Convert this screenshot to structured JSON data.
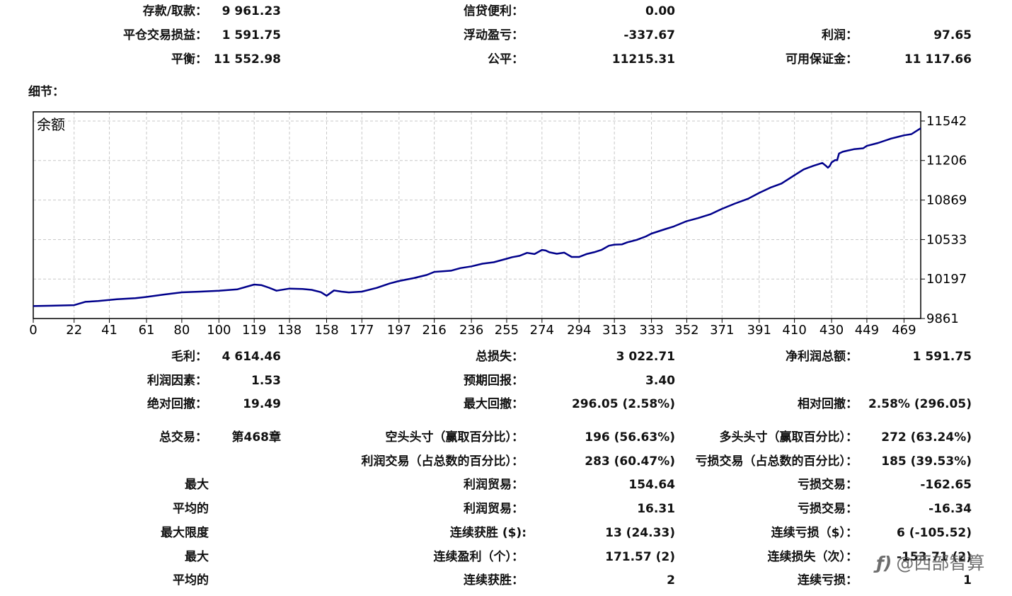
{
  "summary": [
    {
      "label": "存款/取款：",
      "value": "9 961.23"
    },
    {
      "label": "信贷便利：",
      "value": "0.00"
    },
    {
      "label": "平仓交易损益：",
      "value": "1 591.75"
    },
    {
      "label": "浮动盈亏：",
      "value": "-337.67"
    },
    {
      "label": "利润：",
      "value": "97.65"
    },
    {
      "label": "平衡：",
      "value": "11 552.98"
    },
    {
      "label": "公平：",
      "value": "11215.31"
    },
    {
      "label": "可用保证金：",
      "value": "11 117.66"
    }
  ],
  "details_label": "细节：",
  "chart_data": {
    "type": "line",
    "title": "余额",
    "xlabel": "",
    "ylabel": "",
    "xlim": [
      0,
      478
    ],
    "ylim": [
      9861,
      11620
    ],
    "grid": true,
    "x_ticks": [
      0,
      22,
      41,
      61,
      80,
      100,
      119,
      138,
      158,
      177,
      197,
      216,
      236,
      255,
      274,
      294,
      313,
      333,
      352,
      371,
      391,
      410,
      430,
      449,
      469
    ],
    "y_ticks": [
      9861,
      10197,
      10533,
      10869,
      11206,
      11542
    ],
    "series": [
      {
        "color": "#00008b",
        "x": [
          0,
          10,
          22,
          28,
          35,
          45,
          55,
          61,
          70,
          80,
          90,
          100,
          110,
          119,
          123,
          127,
          131,
          138,
          145,
          150,
          155,
          158,
          162,
          166,
          170,
          177,
          185,
          192,
          197,
          205,
          212,
          216,
          225,
          230,
          236,
          242,
          248,
          255,
          258,
          262,
          266,
          270,
          274,
          276,
          278,
          282,
          286,
          290,
          294,
          298,
          302,
          306,
          310,
          313,
          317,
          320,
          325,
          330,
          333,
          340,
          345,
          352,
          358,
          365,
          371,
          378,
          385,
          391,
          397,
          403,
          410,
          415,
          420,
          425,
          427,
          428,
          429,
          430,
          431,
          432,
          433,
          434,
          436,
          438,
          442,
          447,
          449,
          455,
          462,
          469,
          473,
          478
        ],
        "y": [
          9967,
          9970,
          9975,
          10003,
          10010,
          10025,
          10034,
          10045,
          10064,
          10084,
          10090,
          10097,
          10110,
          10150,
          10145,
          10123,
          10098,
          10116,
          10112,
          10105,
          10085,
          10055,
          10100,
          10090,
          10083,
          10090,
          10122,
          10160,
          10180,
          10205,
          10232,
          10258,
          10268,
          10290,
          10305,
          10328,
          10340,
          10370,
          10383,
          10395,
          10420,
          10410,
          10445,
          10440,
          10425,
          10412,
          10422,
          10385,
          10385,
          10410,
          10425,
          10445,
          10480,
          10490,
          10492,
          10510,
          10530,
          10560,
          10584,
          10620,
          10645,
          10690,
          10715,
          10750,
          10795,
          10840,
          10880,
          10930,
          10975,
          11010,
          11080,
          11130,
          11160,
          11185,
          11160,
          11145,
          11160,
          11190,
          11200,
          11210,
          11208,
          11265,
          11280,
          11288,
          11302,
          11310,
          11330,
          11355,
          11392,
          11420,
          11430,
          11480
        ]
      }
    ]
  },
  "stats": [
    {
      "label": "毛利：",
      "value": "4 614.46"
    },
    {
      "label": "总损失：",
      "value": "3 022.71"
    },
    {
      "label": "净利润总额：",
      "value": "1 591.75"
    },
    {
      "label": "利润因素：",
      "value": "1.53"
    },
    {
      "label": "预期回报：",
      "value": "3.40"
    },
    {
      "label": "绝对回撤：",
      "value": "19.49"
    },
    {
      "label": "最大回撤：",
      "value": "296.05 (2.58%)"
    },
    {
      "label": "相对回撤：",
      "value": "2.58% (296.05)"
    },
    {
      "label": "总交易：",
      "value": "第468章"
    },
    {
      "label": "空头头寸（赢取百分比）：",
      "value": "196 (56.63%)"
    },
    {
      "label": "多头头寸（赢取百分比）：",
      "value": "272 (63.24%)"
    },
    {
      "label": "利润交易（占总数的百分比）：",
      "value": "283 (60.47%)"
    },
    {
      "label": "亏损交易（占总数的百分比）：",
      "value": "185 (39.53%)"
    },
    {
      "label": "最大"
    },
    {
      "label": "利润贸易：",
      "value": "154.64"
    },
    {
      "label": "亏损交易：",
      "value": "-162.65"
    },
    {
      "label": "平均的"
    },
    {
      "label": "利润贸易：",
      "value": "16.31"
    },
    {
      "label": "亏损交易：",
      "value": "-16.34"
    },
    {
      "label": "最大限度"
    },
    {
      "label": "连续获胜 ($):",
      "value": "13 (24.33)"
    },
    {
      "label": "连续亏损（$）：",
      "value": "6 (-105.52)"
    },
    {
      "label": "最大"
    },
    {
      "label": "连续盈利（个）：",
      "value": "171.57 (2)"
    },
    {
      "label": "连续损失（次）：",
      "value": "-153.71 (2)"
    },
    {
      "label": "平均的"
    },
    {
      "label": "连续获胜：",
      "value": "2"
    },
    {
      "label": "连续亏损：",
      "value": "1"
    }
  ],
  "watermark": {
    "logo": "ƒ)",
    "text": "@西部智算"
  }
}
